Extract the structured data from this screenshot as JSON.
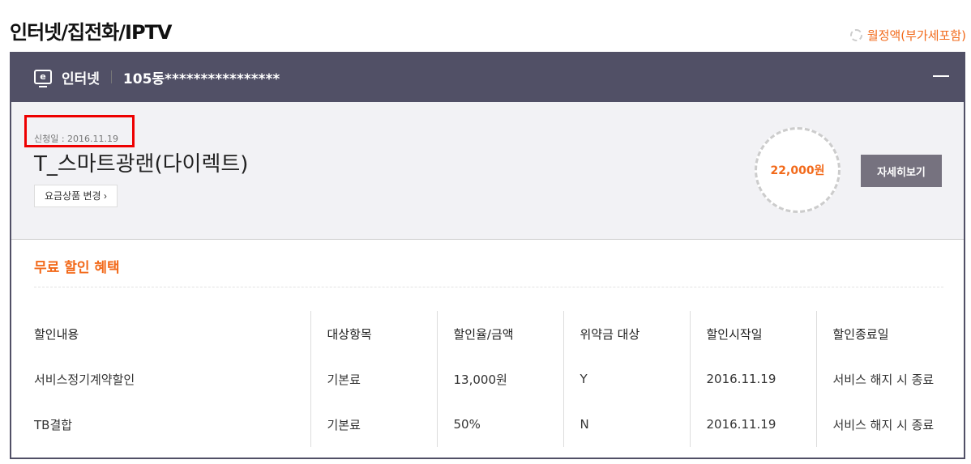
{
  "page_title": "인터넷/집전화/IPTV",
  "legend": "월정액(부가세포함)",
  "header": {
    "icon": "internet-monitor-icon",
    "icon_letter": "e",
    "service": "인터넷",
    "address": "105동****************"
  },
  "plan": {
    "apply_date": "신청일 : 2016.11.19",
    "name": "T_스마트광랜(다이렉트)",
    "change_label": "요금상품 변경 ›",
    "price": "22,000원",
    "detail_label": "자세히보기"
  },
  "discount": {
    "title": "무료 할인 혜택",
    "columns": [
      "할인내용",
      "대상항목",
      "할인율/금액",
      "위약금 대상",
      "할인시작일",
      "할인종료일"
    ],
    "rows": [
      [
        "서비스정기계약할인",
        "기본료",
        "13,000원",
        "Y",
        "2016.11.19",
        "서비스 해지 시 종료"
      ],
      [
        "TB결합",
        "기본료",
        "50%",
        "N",
        "2016.11.19",
        "서비스 해지 시 종료"
      ]
    ]
  },
  "colors": {
    "accent": "#f26a1b",
    "header": "#515066"
  }
}
